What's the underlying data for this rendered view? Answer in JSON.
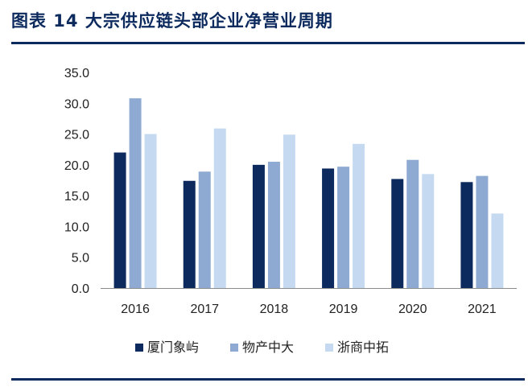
{
  "title": "图表 14    大宗供应链头部企业净营业周期",
  "colors": {
    "title": "#0c2a5e",
    "rule": "#0c2a5e",
    "axis": "#8c8c8c"
  },
  "chart_data": {
    "type": "bar",
    "title": "图表 14    大宗供应链头部企业净营业周期",
    "xlabel": "",
    "ylabel": "",
    "categories": [
      "2016",
      "2017",
      "2018",
      "2019",
      "2020",
      "2021"
    ],
    "ylim": [
      0,
      35
    ],
    "yticks": [
      "0.0",
      "5.0",
      "10.0",
      "15.0",
      "20.0",
      "25.0",
      "30.0",
      "35.0"
    ],
    "grid": false,
    "legend_position": "bottom",
    "series": [
      {
        "name": "厦门象屿",
        "color": "#0c2a5e",
        "values": [
          22.0,
          17.4,
          20.0,
          19.4,
          17.7,
          17.2
        ]
      },
      {
        "name": "物产中大",
        "color": "#8eaad2",
        "values": [
          30.8,
          18.9,
          20.5,
          19.7,
          20.8,
          18.2
        ]
      },
      {
        "name": "浙商中拓",
        "color": "#c5daf1",
        "values": [
          25.0,
          25.9,
          24.9,
          23.4,
          18.5,
          12.1
        ]
      }
    ]
  }
}
